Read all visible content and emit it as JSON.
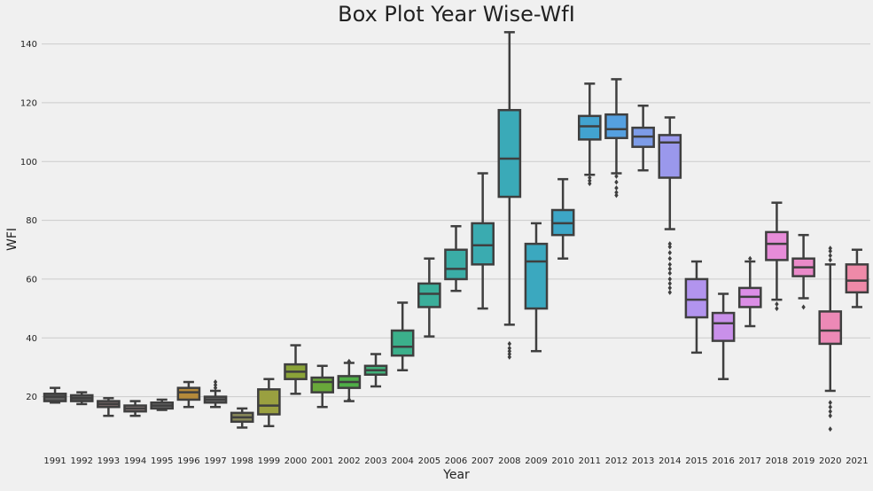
{
  "chart_data": {
    "type": "box",
    "title": "Box Plot Year Wise-WfI",
    "xlabel": "Year",
    "ylabel": "WFI",
    "ylim": [
      3,
      145
    ],
    "yticks": [
      20,
      40,
      60,
      80,
      100,
      120,
      140
    ],
    "grid": true,
    "categories": [
      "1991",
      "1992",
      "1993",
      "1994",
      "1995",
      "1996",
      "1997",
      "1998",
      "1999",
      "2000",
      "2001",
      "2002",
      "2003",
      "2004",
      "2005",
      "2006",
      "2007",
      "2008",
      "2009",
      "2010",
      "2011",
      "2012",
      "2013",
      "2014",
      "2015",
      "2016",
      "2017",
      "2018",
      "2019",
      "2020",
      "2021"
    ],
    "boxes": [
      {
        "year": "1991",
        "color": "#5e5e5e",
        "whislo": 18.0,
        "q1": 18.5,
        "med": 20.0,
        "q3": 21.0,
        "whishi": 23.0,
        "fliers": []
      },
      {
        "year": "1992",
        "color": "#5a5a5a",
        "whislo": 17.5,
        "q1": 18.5,
        "med": 19.5,
        "q3": 20.5,
        "whishi": 21.5,
        "fliers": []
      },
      {
        "year": "1993",
        "color": "#7a6a6a",
        "whislo": 13.5,
        "q1": 16.5,
        "med": 17.5,
        "q3": 18.5,
        "whishi": 19.5,
        "fliers": []
      },
      {
        "year": "1994",
        "color": "#8a7a7a",
        "whislo": 13.5,
        "q1": 15.0,
        "med": 16.0,
        "q3": 17.0,
        "whishi": 18.5,
        "fliers": []
      },
      {
        "year": "1995",
        "color": "#707070",
        "whislo": 15.5,
        "q1": 16.0,
        "med": 17.0,
        "q3": 18.0,
        "whishi": 19.0,
        "fliers": []
      },
      {
        "year": "1996",
        "color": "#b58a3a",
        "whislo": 16.5,
        "q1": 19.0,
        "med": 21.5,
        "q3": 23.0,
        "whishi": 25.0,
        "fliers": []
      },
      {
        "year": "1997",
        "color": "#6a6a6a",
        "whislo": 16.5,
        "q1": 18.0,
        "med": 19.0,
        "q3": 20.0,
        "whishi": 22.0,
        "fliers": [
          23.0,
          24.0,
          25.0
        ]
      },
      {
        "year": "1998",
        "color": "#8a8a5a",
        "whislo": 9.5,
        "q1": 11.5,
        "med": 13.0,
        "q3": 14.5,
        "whishi": 16.0,
        "fliers": []
      },
      {
        "year": "1999",
        "color": "#9aa040",
        "whislo": 10.0,
        "q1": 14.0,
        "med": 17.0,
        "q3": 22.5,
        "whishi": 26.0,
        "fliers": []
      },
      {
        "year": "2000",
        "color": "#8aa338",
        "whislo": 21.0,
        "q1": 26.0,
        "med": 28.5,
        "q3": 31.0,
        "whishi": 37.5,
        "fliers": []
      },
      {
        "year": "2001",
        "color": "#69a83a",
        "whislo": 16.5,
        "q1": 21.5,
        "med": 25.0,
        "q3": 26.5,
        "whishi": 30.5,
        "fliers": []
      },
      {
        "year": "2002",
        "color": "#4fae47",
        "whislo": 18.5,
        "q1": 23.0,
        "med": 25.0,
        "q3": 27.0,
        "whishi": 31.5,
        "fliers": [
          19.0,
          32.0
        ]
      },
      {
        "year": "2003",
        "color": "#41b07a",
        "whislo": 23.5,
        "q1": 27.5,
        "med": 29.0,
        "q3": 30.5,
        "whishi": 34.5,
        "fliers": []
      },
      {
        "year": "2004",
        "color": "#3bb08b",
        "whislo": 29.0,
        "q1": 34.0,
        "med": 37.0,
        "q3": 42.5,
        "whishi": 52.0,
        "fliers": []
      },
      {
        "year": "2005",
        "color": "#3aae9a",
        "whislo": 40.5,
        "q1": 50.5,
        "med": 55.0,
        "q3": 58.5,
        "whishi": 67.0,
        "fliers": []
      },
      {
        "year": "2006",
        "color": "#3aada6",
        "whislo": 56.0,
        "q1": 60.0,
        "med": 63.5,
        "q3": 70.0,
        "whishi": 78.0,
        "fliers": []
      },
      {
        "year": "2007",
        "color": "#3aabb0",
        "whislo": 50.0,
        "q1": 65.0,
        "med": 71.5,
        "q3": 79.0,
        "whishi": 96.0,
        "fliers": []
      },
      {
        "year": "2008",
        "color": "#3aaab8",
        "whislo": 44.5,
        "q1": 88.0,
        "med": 101.0,
        "q3": 117.5,
        "whishi": 144.0,
        "fliers": [
          33.5,
          34.5,
          35.5,
          36.5,
          38.0
        ]
      },
      {
        "year": "2009",
        "color": "#3ba8bf",
        "whislo": 35.5,
        "q1": 50.0,
        "med": 66.0,
        "q3": 72.0,
        "whishi": 79.0,
        "fliers": []
      },
      {
        "year": "2010",
        "color": "#3da6c6",
        "whislo": 67.0,
        "q1": 75.0,
        "med": 79.0,
        "q3": 83.5,
        "whishi": 94.0,
        "fliers": []
      },
      {
        "year": "2011",
        "color": "#42a3d0",
        "whislo": 95.5,
        "q1": 107.5,
        "med": 112.0,
        "q3": 115.5,
        "whishi": 126.5,
        "fliers": [
          92.5,
          93.5,
          94.5
        ]
      },
      {
        "year": "2012",
        "color": "#55a0e0",
        "whislo": 96.0,
        "q1": 108.0,
        "med": 111.0,
        "q3": 116.0,
        "whishi": 128.0,
        "fliers": [
          88.5,
          89.5,
          91.0,
          93.0,
          95.0
        ]
      },
      {
        "year": "2013",
        "color": "#7d9ce8",
        "whislo": 97.0,
        "q1": 105.0,
        "med": 108.5,
        "q3": 111.5,
        "whishi": 119.0,
        "fliers": []
      },
      {
        "year": "2014",
        "color": "#9a98ec",
        "whislo": 77.0,
        "q1": 94.5,
        "med": 106.5,
        "q3": 109.0,
        "whishi": 115.0,
        "fliers": [
          55.5,
          57.0,
          58.5,
          60.0,
          62.0,
          63.5,
          65.0,
          67.0,
          69.0,
          71.0,
          72.0
        ]
      },
      {
        "year": "2015",
        "color": "#b294ee",
        "whislo": 35.0,
        "q1": 47.0,
        "med": 53.0,
        "q3": 60.0,
        "whishi": 66.0,
        "fliers": []
      },
      {
        "year": "2016",
        "color": "#c990ea",
        "whislo": 26.0,
        "q1": 39.0,
        "med": 45.0,
        "q3": 48.5,
        "whishi": 55.0,
        "fliers": []
      },
      {
        "year": "2017",
        "color": "#dc8ee6",
        "whislo": 44.0,
        "q1": 50.5,
        "med": 54.0,
        "q3": 57.0,
        "whishi": 66.0,
        "fliers": [
          67.0
        ]
      },
      {
        "year": "2018",
        "color": "#e78cd8",
        "whislo": 53.0,
        "q1": 66.5,
        "med": 72.0,
        "q3": 76.0,
        "whishi": 86.0,
        "fliers": [
          50.0,
          51.5
        ]
      },
      {
        "year": "2019",
        "color": "#ea8ac9",
        "whislo": 53.5,
        "q1": 61.0,
        "med": 64.0,
        "q3": 67.0,
        "whishi": 75.0,
        "fliers": [
          50.5
        ]
      },
      {
        "year": "2020",
        "color": "#ec89b6",
        "whislo": 22.0,
        "q1": 38.0,
        "med": 42.5,
        "q3": 49.0,
        "whishi": 65.0,
        "fliers": [
          9.0,
          13.5,
          15.0,
          16.5,
          18.0,
          66.5,
          68.0,
          69.5,
          70.5
        ]
      },
      {
        "year": "2021",
        "color": "#ee8aa8",
        "whislo": 50.5,
        "q1": 55.5,
        "med": 59.5,
        "q3": 65.0,
        "whishi": 70.0,
        "fliers": []
      }
    ]
  }
}
